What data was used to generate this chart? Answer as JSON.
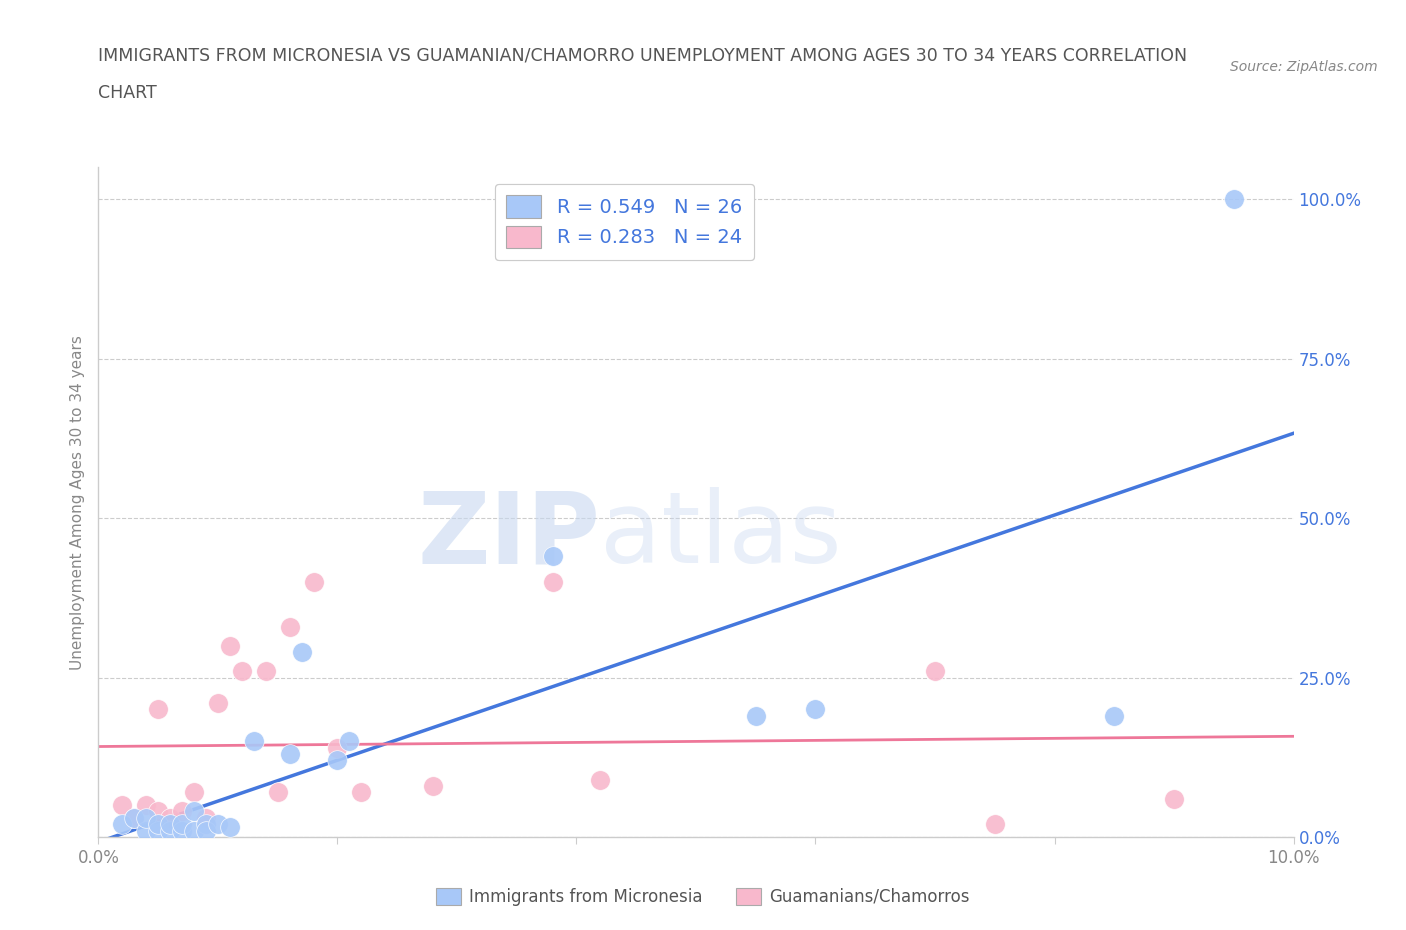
{
  "title_line1": "IMMIGRANTS FROM MICRONESIA VS GUAMANIAN/CHAMORRO UNEMPLOYMENT AMONG AGES 30 TO 34 YEARS CORRELATION",
  "title_line2": "CHART",
  "source": "Source: ZipAtlas.com",
  "ylabel": "Unemployment Among Ages 30 to 34 years",
  "xlim": [
    0.0,
    0.1
  ],
  "ylim": [
    0.0,
    1.05
  ],
  "xticks": [
    0.0,
    0.02,
    0.04,
    0.06,
    0.08,
    0.1
  ],
  "xtick_labels_show": [
    "0.0%",
    "",
    "",
    "",
    "",
    "10.0%"
  ],
  "yticks": [
    0.0,
    0.25,
    0.5,
    0.75,
    1.0
  ],
  "ytick_labels": [
    "0.0%",
    "25.0%",
    "50.0%",
    "75.0%",
    "100.0%"
  ],
  "blue_color": "#a8c8f8",
  "pink_color": "#f8b8cc",
  "blue_line_color": "#4477dd",
  "pink_line_color": "#ee7799",
  "R_blue": 0.549,
  "N_blue": 26,
  "R_pink": 0.283,
  "N_pink": 24,
  "blue_scatter_x": [
    0.002,
    0.003,
    0.004,
    0.004,
    0.005,
    0.005,
    0.006,
    0.006,
    0.007,
    0.007,
    0.008,
    0.008,
    0.009,
    0.009,
    0.01,
    0.011,
    0.013,
    0.016,
    0.017,
    0.02,
    0.021,
    0.038,
    0.055,
    0.06,
    0.085,
    0.095
  ],
  "blue_scatter_y": [
    0.02,
    0.03,
    0.01,
    0.03,
    0.01,
    0.02,
    0.01,
    0.02,
    0.01,
    0.02,
    0.04,
    0.01,
    0.02,
    0.01,
    0.02,
    0.015,
    0.15,
    0.13,
    0.29,
    0.12,
    0.15,
    0.44,
    0.19,
    0.2,
    0.19,
    1.0
  ],
  "pink_scatter_x": [
    0.002,
    0.003,
    0.004,
    0.005,
    0.005,
    0.006,
    0.007,
    0.008,
    0.009,
    0.01,
    0.011,
    0.012,
    0.014,
    0.015,
    0.016,
    0.018,
    0.02,
    0.022,
    0.028,
    0.038,
    0.042,
    0.07,
    0.075,
    0.09
  ],
  "pink_scatter_y": [
    0.05,
    0.03,
    0.05,
    0.04,
    0.2,
    0.03,
    0.04,
    0.07,
    0.03,
    0.21,
    0.3,
    0.26,
    0.26,
    0.07,
    0.33,
    0.4,
    0.14,
    0.07,
    0.08,
    0.4,
    0.09,
    0.26,
    0.02,
    0.06
  ],
  "watermark_zip": "ZIP",
  "watermark_atlas": "atlas",
  "legend_label_blue": "Immigrants from Micronesia",
  "legend_label_pink": "Guamanians/Chamorros",
  "bg_color": "#ffffff",
  "grid_color": "#cccccc",
  "label_color_blue": "#4477dd",
  "tick_color": "#888888",
  "title_color": "#555555"
}
